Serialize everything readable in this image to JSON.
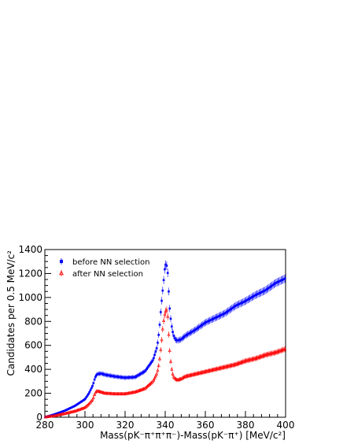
{
  "chart_data": {
    "type": "scatter",
    "xlabel": "Mass(pK⁻π⁺π⁺π⁻)-Mass(pK⁻π⁺) [MeV/c²]",
    "ylabel": "Candidates per 0.5 MeV/c²",
    "xlim": [
      280,
      400
    ],
    "ylim": [
      0,
      1400
    ],
    "xticks": [
      280,
      300,
      320,
      340,
      360,
      380,
      400
    ],
    "yticks": [
      0,
      200,
      400,
      600,
      800,
      1000,
      1200,
      1400
    ],
    "legend_position": "top-left",
    "grid": false,
    "x": [
      280,
      285,
      290,
      295,
      300,
      302,
      304,
      305,
      306,
      308,
      310,
      315,
      320,
      325,
      330,
      334,
      336,
      337,
      338,
      339,
      340,
      341,
      341.5,
      342,
      343,
      344,
      345,
      346,
      348,
      350,
      355,
      360,
      365,
      370,
      375,
      380,
      385,
      390,
      395,
      400
    ],
    "series": [
      {
        "name": "before NN selection",
        "color": "#0000ff",
        "marker": "filled-square",
        "values": [
          0,
          25,
          55,
          95,
          150,
          200,
          270,
          330,
          360,
          365,
          355,
          340,
          330,
          335,
          385,
          480,
          590,
          720,
          930,
          1100,
          1280,
          1260,
          1150,
          950,
          780,
          690,
          650,
          640,
          650,
          680,
          730,
          790,
          830,
          870,
          930,
          970,
          1020,
          1060,
          1120,
          1160
        ]
      },
      {
        "name": "after NN selection",
        "color": "#ff0000",
        "marker": "open-triangle",
        "values": [
          0,
          12,
          30,
          50,
          80,
          110,
          150,
          200,
          220,
          210,
          200,
          195,
          195,
          210,
          240,
          300,
          370,
          450,
          600,
          780,
          880,
          900,
          780,
          600,
          420,
          340,
          320,
          310,
          320,
          340,
          360,
          380,
          400,
          420,
          440,
          470,
          490,
          520,
          540,
          570
        ]
      }
    ]
  }
}
